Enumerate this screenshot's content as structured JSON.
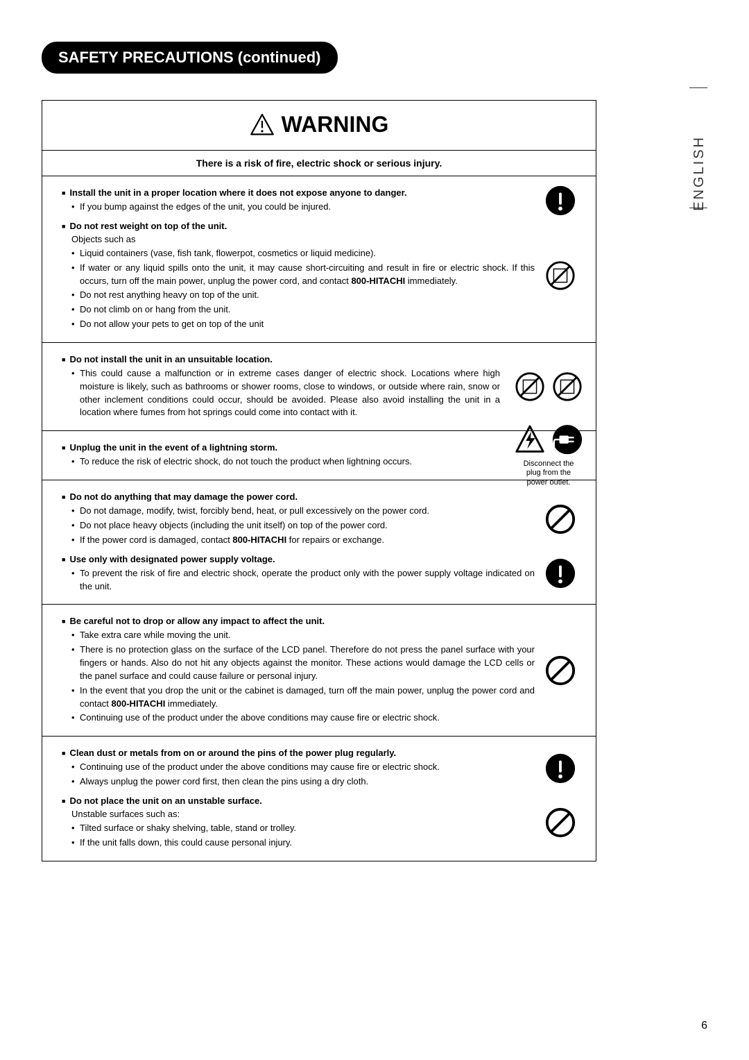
{
  "header": {
    "title": "SAFETY PRECAUTIONS (continued)"
  },
  "language_label": "ENGLISH",
  "page_number": "6",
  "warning_title": "WARNING",
  "risk_line": "There is a risk of fire, electric shock or serious injury.",
  "sections": [
    {
      "heading": "Install the unit in a proper location where it does not expose anyone to danger.",
      "bullets": [
        "If you bump against the edges of the unit, you could be injured."
      ],
      "icons": [
        "caution-solid"
      ],
      "border_after": false
    },
    {
      "heading": "Do not rest weight on top of the unit.",
      "intro": "Objects such as",
      "bullets": [
        "Liquid containers (vase, fish tank, flowerpot, cosmetics or liquid medicine).",
        "If water or any liquid spills onto the unit, it may cause short-circuiting and result in fire or electric shock. If this occurs, turn off the main power, unplug the power cord, and contact 800-HITACHI immediately.",
        "Do not rest anything heavy on top of the unit.",
        "Do not climb on or hang from the unit.",
        "Do not allow your pets to get on top of the unit"
      ],
      "icons": [
        "no-vase"
      ],
      "border_after": true
    },
    {
      "heading": "Do not install the unit in an unsuitable location.",
      "bullets": [
        "This could cause a malfunction or in extreme cases danger of electric shock. Locations where high moisture is likely, such as bathrooms or shower rooms, close to windows, or outside where rain, snow or other inclement conditions could occur, should be avoided. Please also avoid installing the unit in a location where fumes from hot springs could come into contact with it."
      ],
      "icons": [
        "no-wet",
        "no-steam"
      ],
      "icons_layout": "row",
      "border_after": true
    },
    {
      "heading": "Unplug the unit in the event of a lightning storm.",
      "bullets": [
        "To reduce the risk of electric shock, do not touch the product when lightning occurs."
      ],
      "icons": [
        "shock-triangle",
        "unplug-solid"
      ],
      "icons_layout": "row",
      "caption": "Disconnect the plug from the power outlet.",
      "border_after": true
    },
    {
      "heading": "Do not do anything that may damage the power cord.",
      "bullets": [
        "Do not damage, modify, twist, forcibly bend, heat, or pull excessively on the power cord.",
        "Do not place heavy objects (including the unit itself) on top of the power cord.",
        "If the power cord is damaged, contact 800-HITACHI for repairs or exchange."
      ],
      "icons": [
        "prohibit"
      ],
      "border_after": false
    },
    {
      "heading": "Use only with designated power supply voltage.",
      "bullets": [
        "To prevent the risk of fire and electric shock, operate the product only with the power supply voltage indicated on the unit."
      ],
      "icons": [
        "caution-solid"
      ],
      "border_after": true
    },
    {
      "heading": "Be careful not to drop or allow any impact to affect the unit.",
      "bullets": [
        "Take extra care while moving the unit.",
        "There is no protection glass on the surface of the LCD panel. Therefore do not press the panel surface with your fingers or hands. Also do not hit any objects against the monitor. These actions would damage the LCD cells or the panel surface and could cause failure or personal injury.",
        "In the event that you drop the unit or the cabinet is damaged, turn off the main power, unplug the power cord and contact 800-HITACHI immediately.",
        "Continuing use of the product under the above conditions may cause fire or electric shock."
      ],
      "icons": [
        "prohibit"
      ],
      "border_after": true
    },
    {
      "heading": "Clean dust or metals from on or around the pins of the power plug regularly.",
      "bullets": [
        "Continuing use of the product under the above conditions may cause fire or electric shock.",
        "Always unplug the power cord first, then clean the pins using a dry cloth."
      ],
      "icons": [
        "caution-solid"
      ],
      "border_after": false
    },
    {
      "heading": "Do not place the unit on an unstable surface.",
      "intro": "Unstable surfaces such as:",
      "bullets": [
        "Tilted surface or shaky shelving, table, stand or trolley.",
        "If the unit falls down, this could cause personal injury."
      ],
      "icons": [
        "prohibit"
      ],
      "border_after": true
    }
  ],
  "bold_phrases": [
    "800-HITACHI"
  ],
  "icon_defs": {
    "caution-solid": "solid_triangle_exclaim",
    "prohibit": "circle_slash",
    "no-vase": "circle_slash_content",
    "no-wet": "circle_slash_content",
    "no-steam": "circle_slash_content",
    "shock-triangle": "triangle_bolt",
    "unplug-solid": "solid_circle_plug"
  },
  "colors": {
    "black": "#000000",
    "white": "#ffffff"
  }
}
